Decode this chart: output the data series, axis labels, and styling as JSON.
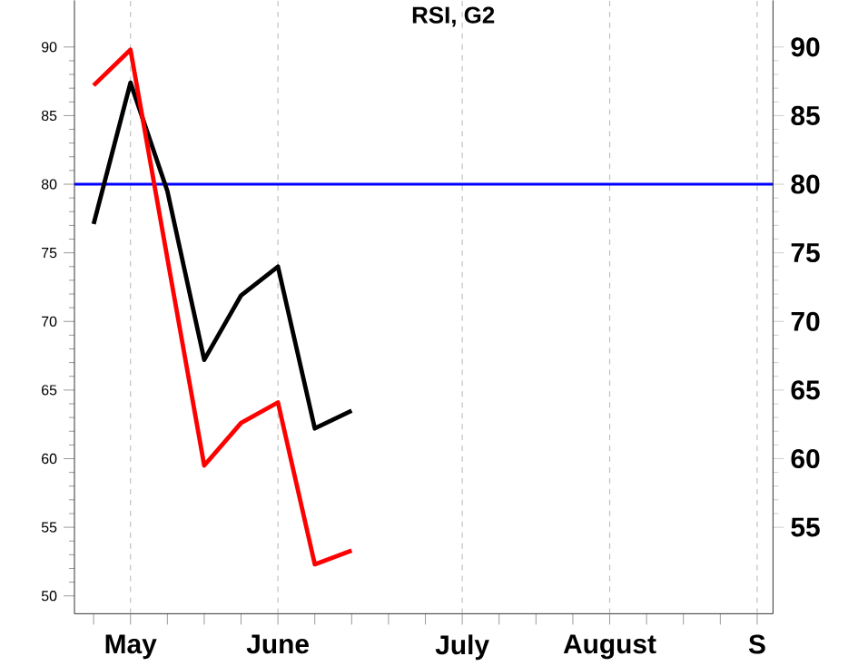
{
  "chart_data": {
    "type": "line",
    "title": "RSI, G2",
    "categories": [
      null,
      null,
      "May",
      null,
      null,
      null,
      "June",
      null,
      null,
      null,
      null,
      "July",
      null,
      null,
      null,
      "August",
      null,
      null,
      null,
      "S"
    ],
    "ylim": [
      48.7,
      93.4
    ],
    "yticks": [
      50,
      55,
      60,
      65,
      70,
      75,
      80,
      85,
      90
    ],
    "y2lim": [
      48.7,
      93.4
    ],
    "y2ticks": [
      55,
      60,
      65,
      70,
      75,
      80,
      85,
      90
    ],
    "series": [
      {
        "color": "#000000",
        "values": [
          null,
          77.1,
          87.4,
          79.5,
          67.2,
          71.9,
          74.0,
          62.2,
          63.5,
          null,
          null,
          null,
          null,
          null,
          null,
          null,
          null,
          null,
          null,
          null
        ]
      },
      {
        "color": "#ff0000",
        "values": [
          null,
          87.2,
          89.8,
          74.6,
          59.5,
          62.6,
          64.1,
          52.3,
          53.3,
          null,
          null,
          null,
          null,
          null,
          null,
          null,
          null,
          null,
          null,
          null
        ]
      }
    ],
    "ref_lines": [
      {
        "axis": "x",
        "value": "May",
        "color": "#c0c0c0",
        "line_style": "dashed"
      },
      {
        "axis": "x",
        "value": "June",
        "color": "#c0c0c0",
        "line_style": "dashed"
      },
      {
        "axis": "x",
        "value": "July",
        "color": "#c0c0c0",
        "line_style": "dashed"
      },
      {
        "axis": "x",
        "value": "August",
        "color": "#c0c0c0",
        "line_style": "dashed"
      },
      {
        "axis": "x",
        "value": "S",
        "color": "#c0c0c0",
        "line_style": "dashed"
      },
      {
        "axis": "y",
        "value": 80,
        "color": "#0000ff",
        "line_style": "solid"
      }
    ]
  }
}
